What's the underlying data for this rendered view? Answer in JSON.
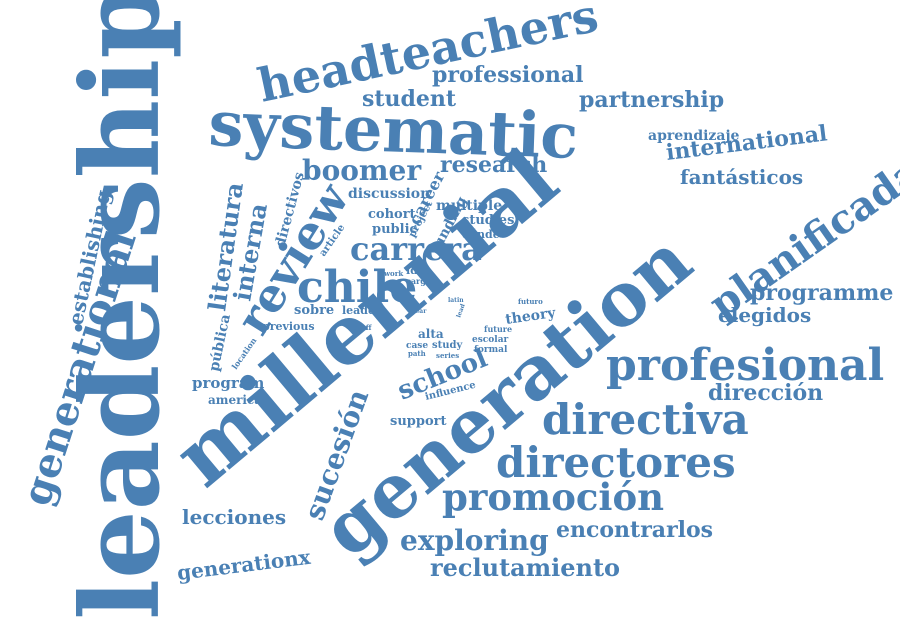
{
  "color": "#4a80b4",
  "words": [
    "leadership",
    "millennial",
    "generation",
    "systematic",
    "headteachers",
    "generational",
    "review",
    "chile",
    "profesional",
    "directiva",
    "directores",
    "promoción",
    "planificada",
    "professional",
    "student",
    "partnership",
    "international",
    "aprendizaje",
    "fantásticos",
    "programme",
    "elegidos",
    "dirección",
    "encontrarlos",
    "exploring",
    "reclutamiento",
    "generationx",
    "lecciones",
    "sucesión",
    "school",
    "boomer",
    "research",
    "carrera",
    "interna",
    "literatura",
    "establishing",
    "pública",
    "program",
    "american",
    "support",
    "directivos",
    "discussion",
    "career",
    "multiple",
    "studies",
    "cohort",
    "public",
    "funding",
    "dónde",
    "project",
    "article",
    "idea",
    "cargo",
    "work",
    "theory",
    "sobre",
    "leader",
    "previous",
    "staff",
    "alta",
    "case",
    "path",
    "study",
    "series",
    "formal",
    "future",
    "escolar",
    "influence",
    "location",
    "latin",
    "year",
    "futuro",
    "lead"
  ]
}
